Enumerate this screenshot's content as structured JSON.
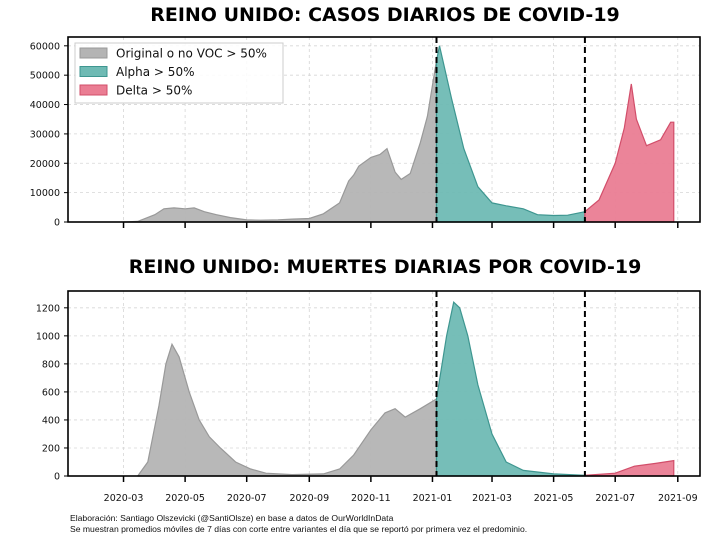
{
  "colors": {
    "original": "#b4b4b4",
    "original_edge": "#999999",
    "alpha": "#6fbab4",
    "alpha_edge": "#3e9690",
    "delta": "#ea7d93",
    "delta_edge": "#d24e6a"
  },
  "legend": {
    "placement": "top-left",
    "items": [
      "Original o no VOC > 50%",
      "Alpha > 50%",
      "Delta > 50%"
    ]
  },
  "footer": {
    "line1": "Elaboración: Santiago Olszevicki (@SantiOlsze) en base a datos de OurWorldInData",
    "line2": "Se muestran promedios móviles de 7 días con corte entre variantes el día que se reportó por primera vez el predominio."
  },
  "chart_data": [
    {
      "type": "area",
      "title": "REINO UNIDO: CASOS DIARIOS DE COVID-19",
      "xlim": [
        "2020-01-06",
        "2021-09-23"
      ],
      "ylim": [
        0,
        63000
      ],
      "yticks": [
        0,
        10000,
        20000,
        30000,
        40000,
        50000,
        60000
      ],
      "grid": true,
      "xticks": [],
      "cutoffs": [
        "2021-01-05",
        "2021-06-01"
      ],
      "series": [
        {
          "name": "Original o no VOC > 50%",
          "points": [
            [
              "2020-03-01",
              0
            ],
            [
              "2020-03-15",
              200
            ],
            [
              "2020-04-01",
              2500
            ],
            [
              "2020-04-10",
              4500
            ],
            [
              "2020-04-20",
              4800
            ],
            [
              "2020-05-01",
              4500
            ],
            [
              "2020-05-10",
              4800
            ],
            [
              "2020-05-20",
              3500
            ],
            [
              "2020-06-01",
              2500
            ],
            [
              "2020-06-15",
              1500
            ],
            [
              "2020-07-01",
              700
            ],
            [
              "2020-07-15",
              600
            ],
            [
              "2020-08-01",
              750
            ],
            [
              "2020-08-15",
              1000
            ],
            [
              "2020-09-01",
              1200
            ],
            [
              "2020-09-15",
              2800
            ],
            [
              "2020-10-01",
              6500
            ],
            [
              "2020-10-10",
              14000
            ],
            [
              "2020-10-15",
              16000
            ],
            [
              "2020-10-20",
              19000
            ],
            [
              "2020-11-01",
              22000
            ],
            [
              "2020-11-10",
              23000
            ],
            [
              "2020-11-17",
              25000
            ],
            [
              "2020-11-25",
              17000
            ],
            [
              "2020-12-01",
              14500
            ],
            [
              "2020-12-10",
              16500
            ],
            [
              "2020-12-20",
              27000
            ],
            [
              "2020-12-27",
              36000
            ],
            [
              "2021-01-05",
              55000
            ]
          ]
        },
        {
          "name": "Alpha > 50%",
          "points": [
            [
              "2021-01-05",
              55000
            ],
            [
              "2021-01-08",
              60000
            ],
            [
              "2021-01-20",
              42000
            ],
            [
              "2021-02-01",
              25000
            ],
            [
              "2021-02-15",
              12000
            ],
            [
              "2021-03-01",
              6500
            ],
            [
              "2021-03-15",
              5500
            ],
            [
              "2021-04-01",
              4500
            ],
            [
              "2021-04-15",
              2500
            ],
            [
              "2021-05-01",
              2200
            ],
            [
              "2021-05-15",
              2300
            ],
            [
              "2021-06-01",
              3500
            ]
          ]
        },
        {
          "name": "Delta > 50%",
          "points": [
            [
              "2021-06-01",
              3500
            ],
            [
              "2021-06-15",
              7500
            ],
            [
              "2021-07-01",
              20000
            ],
            [
              "2021-07-10",
              32000
            ],
            [
              "2021-07-17",
              47000
            ],
            [
              "2021-07-22",
              35000
            ],
            [
              "2021-08-01",
              26000
            ],
            [
              "2021-08-15",
              28000
            ],
            [
              "2021-08-25",
              34000
            ],
            [
              "2021-08-28",
              34000
            ]
          ]
        }
      ]
    },
    {
      "type": "area",
      "title": "REINO UNIDO: MUERTES DIARIAS POR COVID-19",
      "xlim": [
        "2020-01-06",
        "2021-09-23"
      ],
      "ylim": [
        0,
        1320
      ],
      "yticks": [
        0,
        200,
        400,
        600,
        800,
        1000,
        1200
      ],
      "grid": true,
      "xticks": [
        "2020-03",
        "2020-05",
        "2020-07",
        "2020-09",
        "2020-11",
        "2021-01",
        "2021-03",
        "2021-05",
        "2021-07",
        "2021-09"
      ],
      "cutoffs": [
        "2021-01-05",
        "2021-06-01"
      ],
      "series": [
        {
          "name": "Original o no VOC > 50%",
          "points": [
            [
              "2020-03-15",
              0
            ],
            [
              "2020-03-25",
              100
            ],
            [
              "2020-04-05",
              500
            ],
            [
              "2020-04-12",
              800
            ],
            [
              "2020-04-18",
              940
            ],
            [
              "2020-04-25",
              850
            ],
            [
              "2020-05-05",
              600
            ],
            [
              "2020-05-15",
              400
            ],
            [
              "2020-05-25",
              280
            ],
            [
              "2020-06-05",
              200
            ],
            [
              "2020-06-20",
              100
            ],
            [
              "2020-07-05",
              50
            ],
            [
              "2020-07-20",
              20
            ],
            [
              "2020-08-15",
              10
            ],
            [
              "2020-09-15",
              15
            ],
            [
              "2020-10-01",
              50
            ],
            [
              "2020-10-15",
              150
            ],
            [
              "2020-11-01",
              330
            ],
            [
              "2020-11-15",
              450
            ],
            [
              "2020-11-25",
              480
            ],
            [
              "2020-12-05",
              420
            ],
            [
              "2020-12-20",
              480
            ],
            [
              "2021-01-05",
              550
            ]
          ]
        },
        {
          "name": "Alpha > 50%",
          "points": [
            [
              "2021-01-05",
              550
            ],
            [
              "2021-01-15",
              1000
            ],
            [
              "2021-01-22",
              1240
            ],
            [
              "2021-01-28",
              1200
            ],
            [
              "2021-02-05",
              1000
            ],
            [
              "2021-02-15",
              650
            ],
            [
              "2021-03-01",
              300
            ],
            [
              "2021-03-15",
              100
            ],
            [
              "2021-04-01",
              40
            ],
            [
              "2021-05-01",
              15
            ],
            [
              "2021-06-01",
              5
            ]
          ]
        },
        {
          "name": "Delta > 50%",
          "points": [
            [
              "2021-06-01",
              5
            ],
            [
              "2021-07-01",
              20
            ],
            [
              "2021-07-20",
              70
            ],
            [
              "2021-08-10",
              90
            ],
            [
              "2021-08-28",
              110
            ]
          ]
        }
      ]
    }
  ]
}
